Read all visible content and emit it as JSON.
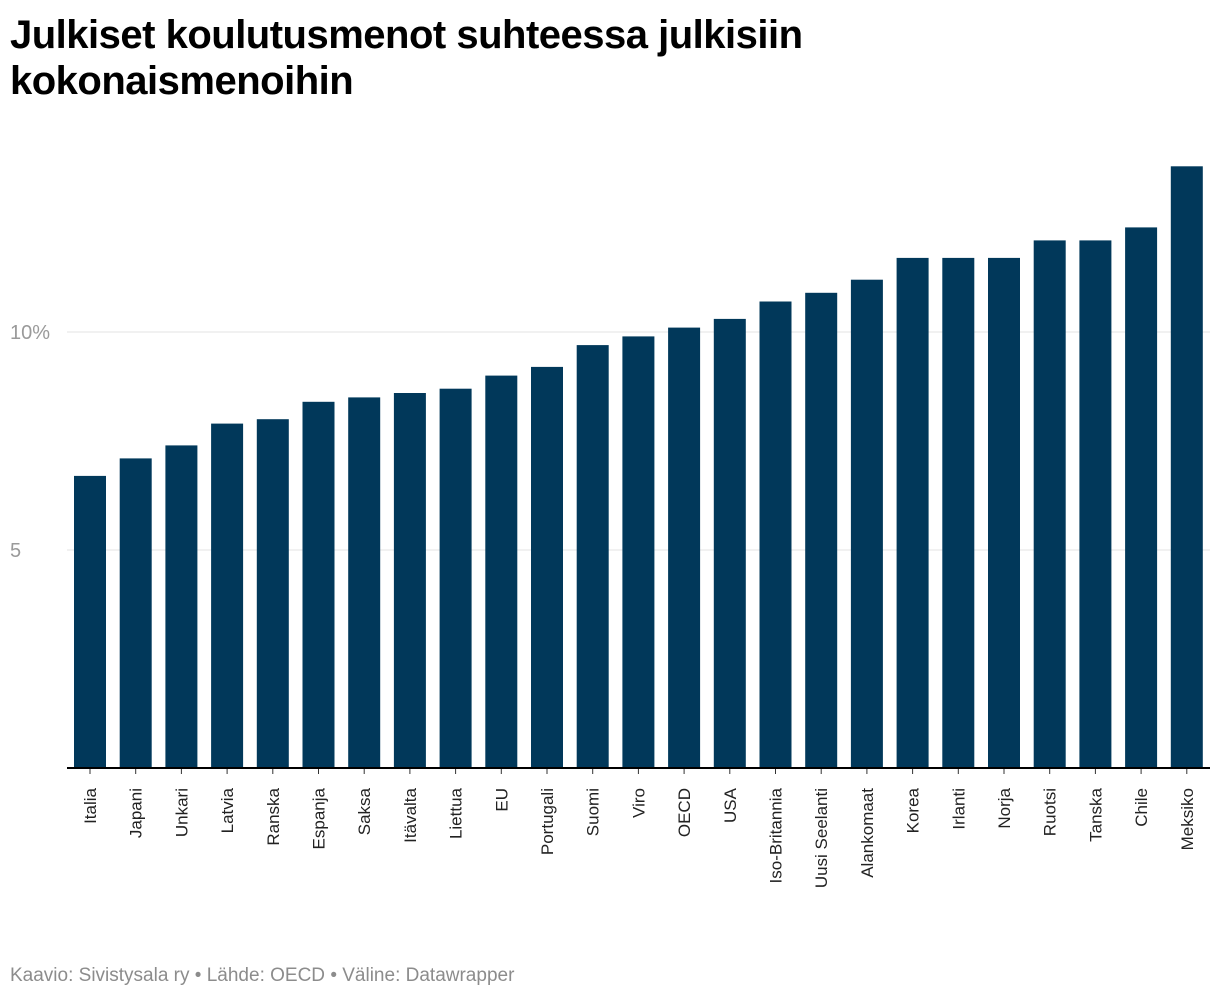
{
  "title": "Julkiset koulutusmenot suhteessa julkisiin kokonaismenoihin",
  "footer": {
    "credit_label": "Kaavio: Sivistysala ry",
    "separator": "•",
    "source_label": "Lähde: OECD",
    "tool_label": "Väline: Datawrapper"
  },
  "colors": {
    "bar": "#01385a",
    "grid": "#e3e3e3",
    "baseline": "#000000",
    "tick_text": "#9a9a9a",
    "footer_text": "#8c8c8c"
  },
  "chart_data": {
    "type": "bar",
    "title": "Julkiset koulutusmenot suhteessa julkisiin kokonaismenoihin",
    "xlabel": "",
    "ylabel": "",
    "unit": "%",
    "ylim": [
      0,
      14
    ],
    "yticks": [
      {
        "value": 5,
        "label": "5"
      },
      {
        "value": 10,
        "label": "10%"
      }
    ],
    "grid": true,
    "categories": [
      "Italia",
      "Japani",
      "Unkari",
      "Latvia",
      "Ranska",
      "Espanja",
      "Saksa",
      "Itävalta",
      "Liettua",
      "EU",
      "Portugali",
      "Suomi",
      "Viro",
      "OECD",
      "USA",
      "Iso-Britannia",
      "Uusi Seelanti",
      "Alankomaat",
      "Korea",
      "Irlanti",
      "Norja",
      "Ruotsi",
      "Tanska",
      "Chile",
      "Meksiko"
    ],
    "values": [
      6.7,
      7.1,
      7.4,
      7.9,
      8.0,
      8.4,
      8.5,
      8.6,
      8.7,
      9.0,
      9.2,
      9.7,
      9.9,
      10.1,
      10.3,
      10.7,
      10.9,
      11.2,
      11.7,
      11.7,
      11.7,
      12.1,
      12.1,
      12.4,
      13.8
    ]
  }
}
